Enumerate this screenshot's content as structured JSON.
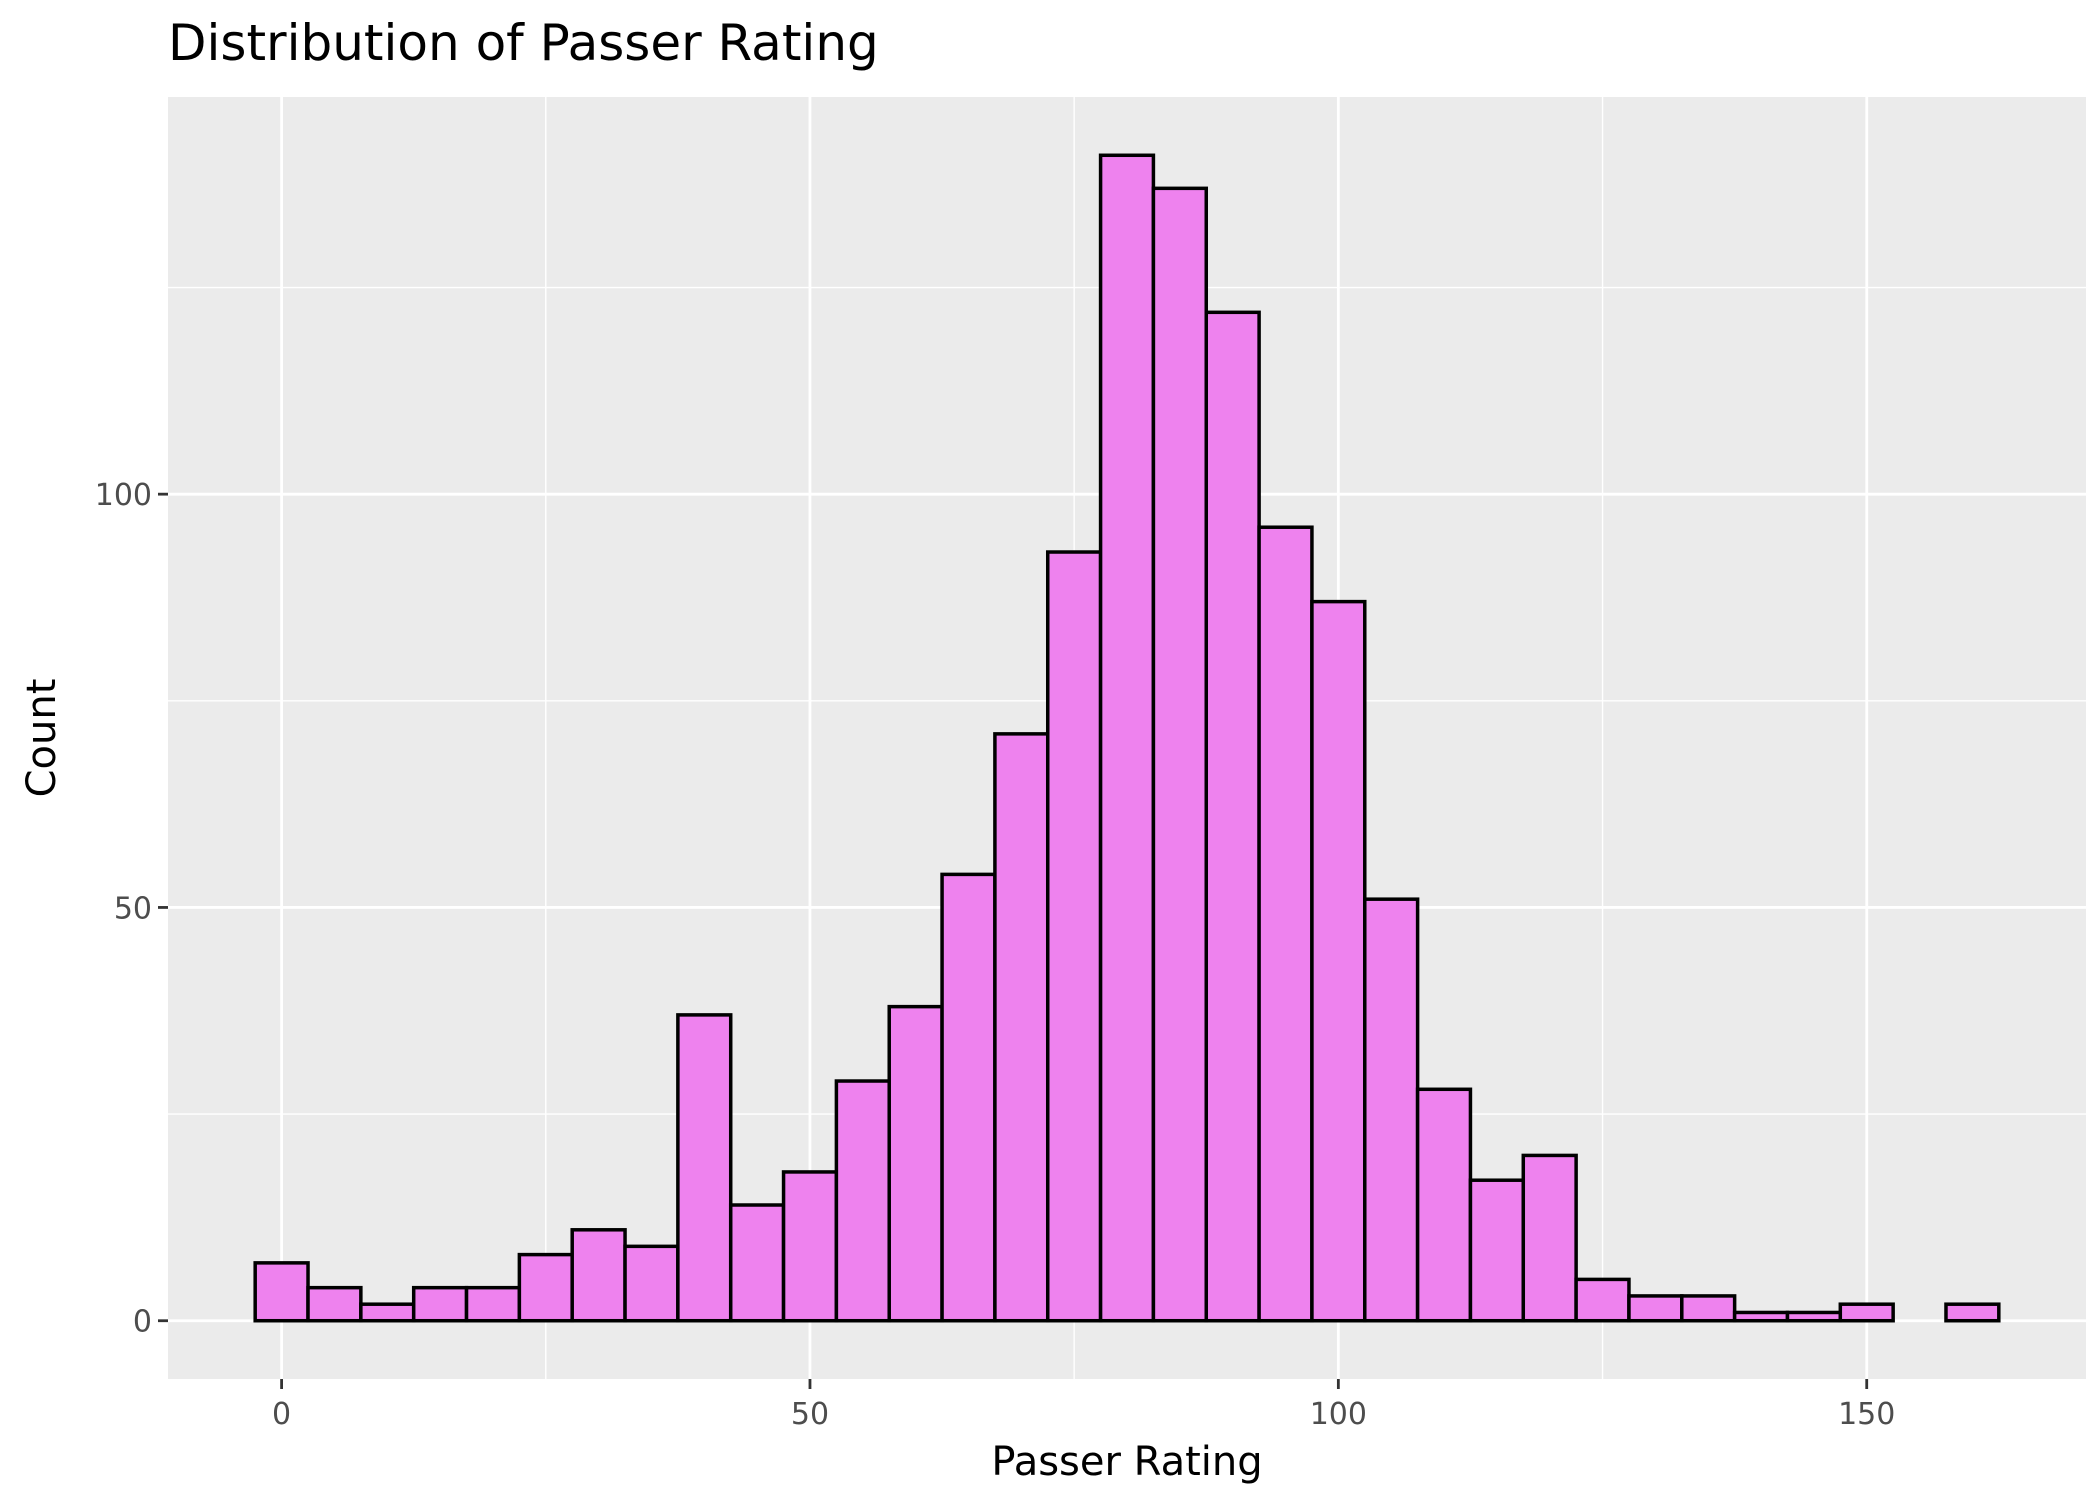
{
  "chart_data": {
    "type": "bar",
    "subtype": "histogram",
    "title": "Distribution of Passer Rating",
    "xlabel": "Passer Rating",
    "ylabel": "Count",
    "bin_width": 5,
    "bins": [
      {
        "x_start": -2.5,
        "x_end": 2.5,
        "count": 7
      },
      {
        "x_start": 2.5,
        "x_end": 7.5,
        "count": 4
      },
      {
        "x_start": 7.5,
        "x_end": 12.5,
        "count": 2
      },
      {
        "x_start": 12.5,
        "x_end": 17.5,
        "count": 4
      },
      {
        "x_start": 17.5,
        "x_end": 22.5,
        "count": 4
      },
      {
        "x_start": 22.5,
        "x_end": 27.5,
        "count": 8
      },
      {
        "x_start": 27.5,
        "x_end": 32.5,
        "count": 11
      },
      {
        "x_start": 32.5,
        "x_end": 37.5,
        "count": 9
      },
      {
        "x_start": 37.5,
        "x_end": 42.5,
        "count": 37
      },
      {
        "x_start": 42.5,
        "x_end": 47.5,
        "count": 14
      },
      {
        "x_start": 47.5,
        "x_end": 52.5,
        "count": 18
      },
      {
        "x_start": 52.5,
        "x_end": 57.5,
        "count": 29
      },
      {
        "x_start": 57.5,
        "x_end": 62.5,
        "count": 38
      },
      {
        "x_start": 62.5,
        "x_end": 67.5,
        "count": 54
      },
      {
        "x_start": 67.5,
        "x_end": 72.5,
        "count": 71
      },
      {
        "x_start": 72.5,
        "x_end": 77.5,
        "count": 93
      },
      {
        "x_start": 77.5,
        "x_end": 82.5,
        "count": 141
      },
      {
        "x_start": 82.5,
        "x_end": 87.5,
        "count": 137
      },
      {
        "x_start": 87.5,
        "x_end": 92.5,
        "count": 122
      },
      {
        "x_start": 92.5,
        "x_end": 97.5,
        "count": 96
      },
      {
        "x_start": 97.5,
        "x_end": 102.5,
        "count": 87
      },
      {
        "x_start": 102.5,
        "x_end": 107.5,
        "count": 51
      },
      {
        "x_start": 107.5,
        "x_end": 112.5,
        "count": 28
      },
      {
        "x_start": 112.5,
        "x_end": 117.5,
        "count": 17
      },
      {
        "x_start": 117.5,
        "x_end": 122.5,
        "count": 20
      },
      {
        "x_start": 122.5,
        "x_end": 127.5,
        "count": 5
      },
      {
        "x_start": 127.5,
        "x_end": 132.5,
        "count": 3
      },
      {
        "x_start": 132.5,
        "x_end": 137.5,
        "count": 3
      },
      {
        "x_start": 137.5,
        "x_end": 142.5,
        "count": 1
      },
      {
        "x_start": 142.5,
        "x_end": 147.5,
        "count": 1
      },
      {
        "x_start": 147.5,
        "x_end": 152.5,
        "count": 2
      },
      {
        "x_start": 152.5,
        "x_end": 157.5,
        "count": 0
      },
      {
        "x_start": 157.5,
        "x_end": 162.5,
        "count": 2
      }
    ],
    "xlim": [
      -10.75,
      170.75
    ],
    "ylim": [
      -7.05,
      148.05
    ],
    "x_ticks": [
      0,
      50,
      100,
      150
    ],
    "x_tick_labels": [
      "0",
      "50",
      "100",
      "150"
    ],
    "y_ticks": [
      0,
      50,
      100
    ],
    "y_tick_labels": [
      "0",
      "50",
      "100"
    ],
    "x_minor_ticks": [
      25,
      75,
      125
    ],
    "y_minor_ticks": [
      25,
      75,
      125
    ],
    "grid": true,
    "legend": "none",
    "colors": {
      "bar_fill": "#EE82EE",
      "bar_outline": "#000000",
      "panel_background": "#EBEBEB",
      "grid_line": "#FFFFFF",
      "tick_label": "#4D4D4D",
      "tick_mark": "#333333"
    }
  }
}
